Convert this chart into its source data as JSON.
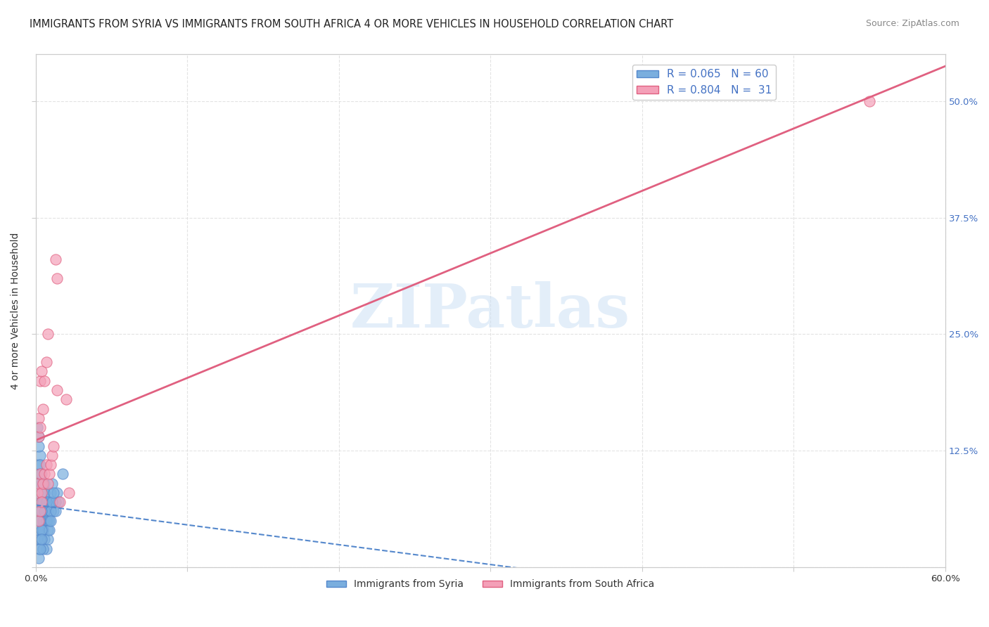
{
  "title": "IMMIGRANTS FROM SYRIA VS IMMIGRANTS FROM SOUTH AFRICA 4 OR MORE VEHICLES IN HOUSEHOLD CORRELATION CHART",
  "source": "Source: ZipAtlas.com",
  "ylabel": "4 or more Vehicles in Household",
  "xlim": [
    0,
    0.6
  ],
  "ylim": [
    0,
    0.55
  ],
  "xtick_positions": [
    0.0,
    0.1,
    0.2,
    0.3,
    0.4,
    0.5,
    0.6
  ],
  "xtick_labels": [
    "0.0%",
    "",
    "",
    "",
    "",
    "",
    "60.0%"
  ],
  "ytick_positions": [
    0.0,
    0.125,
    0.25,
    0.375,
    0.5
  ],
  "ytick_labels_right": [
    "",
    "12.5%",
    "25.0%",
    "37.5%",
    "50.0%"
  ],
  "syria_scatter_color": "#7aaede",
  "southafrica_scatter_color": "#f4a0b8",
  "syria_line_color": "#5588cc",
  "southafrica_line_color": "#e06080",
  "syria_R": 0.065,
  "syria_N": 60,
  "southafrica_R": 0.804,
  "southafrica_N": 31,
  "watermark": "ZIPatlas",
  "background_color": "#ffffff",
  "grid_color": "#dddddd",
  "axis_color": "#cccccc",
  "title_fontsize": 10.5,
  "source_fontsize": 9,
  "label_fontsize": 10,
  "tick_fontsize": 9.5,
  "right_tick_color": "#4472c4",
  "syria_x": [
    0.001,
    0.002,
    0.003,
    0.004,
    0.005,
    0.006,
    0.007,
    0.008,
    0.009,
    0.01,
    0.011,
    0.012,
    0.013,
    0.014,
    0.015,
    0.002,
    0.003,
    0.004,
    0.005,
    0.006,
    0.001,
    0.002,
    0.003,
    0.004,
    0.005,
    0.006,
    0.007,
    0.008,
    0.002,
    0.003,
    0.004,
    0.005,
    0.006,
    0.007,
    0.008,
    0.009,
    0.01,
    0.011,
    0.012,
    0.013,
    0.001,
    0.002,
    0.003,
    0.004,
    0.005,
    0.006,
    0.007,
    0.008,
    0.009,
    0.01,
    0.002,
    0.003,
    0.004,
    0.005,
    0.002,
    0.003,
    0.004,
    0.001,
    0.002,
    0.018
  ],
  "syria_y": [
    0.08,
    0.09,
    0.1,
    0.07,
    0.08,
    0.09,
    0.07,
    0.06,
    0.07,
    0.08,
    0.09,
    0.06,
    0.07,
    0.08,
    0.07,
    0.11,
    0.12,
    0.1,
    0.09,
    0.08,
    0.07,
    0.06,
    0.05,
    0.04,
    0.05,
    0.06,
    0.07,
    0.05,
    0.13,
    0.11,
    0.09,
    0.07,
    0.06,
    0.05,
    0.04,
    0.05,
    0.06,
    0.07,
    0.08,
    0.06,
    0.03,
    0.04,
    0.05,
    0.06,
    0.04,
    0.03,
    0.02,
    0.03,
    0.04,
    0.05,
    0.02,
    0.03,
    0.04,
    0.02,
    0.01,
    0.02,
    0.03,
    0.15,
    0.14,
    0.1
  ],
  "southafrica_x": [
    0.001,
    0.002,
    0.003,
    0.004,
    0.005,
    0.006,
    0.007,
    0.008,
    0.009,
    0.01,
    0.011,
    0.012,
    0.013,
    0.014,
    0.002,
    0.003,
    0.004,
    0.005,
    0.006,
    0.007,
    0.002,
    0.003,
    0.004,
    0.002,
    0.003,
    0.008,
    0.02,
    0.016,
    0.014,
    0.55,
    0.022
  ],
  "southafrica_y": [
    0.08,
    0.09,
    0.1,
    0.08,
    0.09,
    0.1,
    0.11,
    0.09,
    0.1,
    0.11,
    0.12,
    0.13,
    0.33,
    0.31,
    0.16,
    0.2,
    0.21,
    0.17,
    0.2,
    0.22,
    0.05,
    0.06,
    0.07,
    0.14,
    0.15,
    0.25,
    0.18,
    0.07,
    0.19,
    0.5,
    0.08
  ]
}
